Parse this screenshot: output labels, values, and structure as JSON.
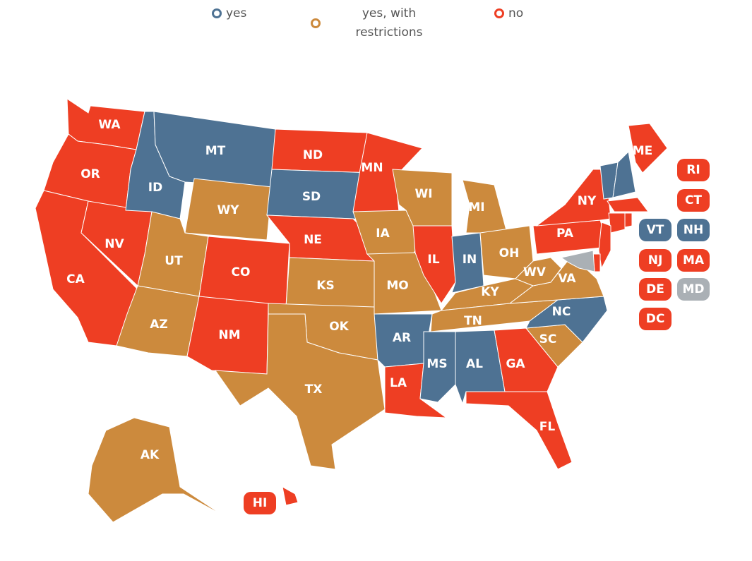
{
  "legend": [
    {
      "label": "yes",
      "color": "#4e7293"
    },
    {
      "label": "yes, with restrictions",
      "color": "#cc8a3d"
    },
    {
      "label": "no",
      "color": "#ee3e23"
    }
  ],
  "states": [
    {
      "label": "WA",
      "color": "#ee3e23"
    },
    {
      "label": "OR",
      "color": "#ee3e23"
    },
    {
      "label": "CA",
      "color": "#ee3e23"
    },
    {
      "label": "NV",
      "color": "#ee3e23"
    },
    {
      "label": "ID",
      "color": "#4e7293"
    },
    {
      "label": "MT",
      "color": "#4e7293"
    },
    {
      "label": "WY",
      "color": "#cc8a3d"
    },
    {
      "label": "UT",
      "color": "#cc8a3d"
    },
    {
      "label": "AZ",
      "color": "#cc8a3d"
    },
    {
      "label": "CO",
      "color": "#ee3e23"
    },
    {
      "label": "NM",
      "color": "#ee3e23"
    },
    {
      "label": "ND",
      "color": "#ee3e23"
    },
    {
      "label": "SD",
      "color": "#4e7293"
    },
    {
      "label": "NE",
      "color": "#ee3e23"
    },
    {
      "label": "KS",
      "color": "#cc8a3d"
    },
    {
      "label": "OK",
      "color": "#cc8a3d"
    },
    {
      "label": "TX",
      "color": "#cc8a3d"
    },
    {
      "label": "MN",
      "color": "#ee3e23"
    },
    {
      "label": "IA",
      "color": "#cc8a3d"
    },
    {
      "label": "MO",
      "color": "#cc8a3d"
    },
    {
      "label": "AR",
      "color": "#4e7293"
    },
    {
      "label": "LA",
      "color": "#ee3e23"
    },
    {
      "label": "WI",
      "color": "#cc8a3d"
    },
    {
      "label": "IL",
      "color": "#ee3e23"
    },
    {
      "label": "IN",
      "color": "#4e7293"
    },
    {
      "label": "MI",
      "color": "#cc8a3d"
    },
    {
      "label": "OH",
      "color": "#cc8a3d"
    },
    {
      "label": "KY",
      "color": "#cc8a3d"
    },
    {
      "label": "TN",
      "color": "#cc8a3d"
    },
    {
      "label": "MS",
      "color": "#4e7293"
    },
    {
      "label": "AL",
      "color": "#4e7293"
    },
    {
      "label": "GA",
      "color": "#ee3e23"
    },
    {
      "label": "FL",
      "color": "#ee3e23"
    },
    {
      "label": "SC",
      "color": "#cc8a3d"
    },
    {
      "label": "NC",
      "color": "#4e7293"
    },
    {
      "label": "VA",
      "color": "#cc8a3d"
    },
    {
      "label": "WV",
      "color": "#cc8a3d"
    },
    {
      "label": "PA",
      "color": "#ee3e23"
    },
    {
      "label": "NY",
      "color": "#ee3e23"
    },
    {
      "label": "ME",
      "color": "#ee3e23"
    },
    {
      "label": "VT",
      "color": "#4e7293"
    },
    {
      "label": "NH",
      "color": "#4e7293"
    },
    {
      "label": "MA",
      "color": "#ee3e23"
    },
    {
      "label": "CT",
      "color": "#ee3e23"
    },
    {
      "label": "RI",
      "color": "#ee3e23"
    },
    {
      "label": "NJ",
      "color": "#ee3e23"
    },
    {
      "label": "DE",
      "color": "#ee3e23"
    },
    {
      "label": "MD",
      "color": "#aab0b5"
    },
    {
      "label": "DC",
      "color": "#ee3e23"
    },
    {
      "label": "AK",
      "color": "#cc8a3d"
    },
    {
      "label": "HI",
      "color": "#ee3e23"
    }
  ]
}
